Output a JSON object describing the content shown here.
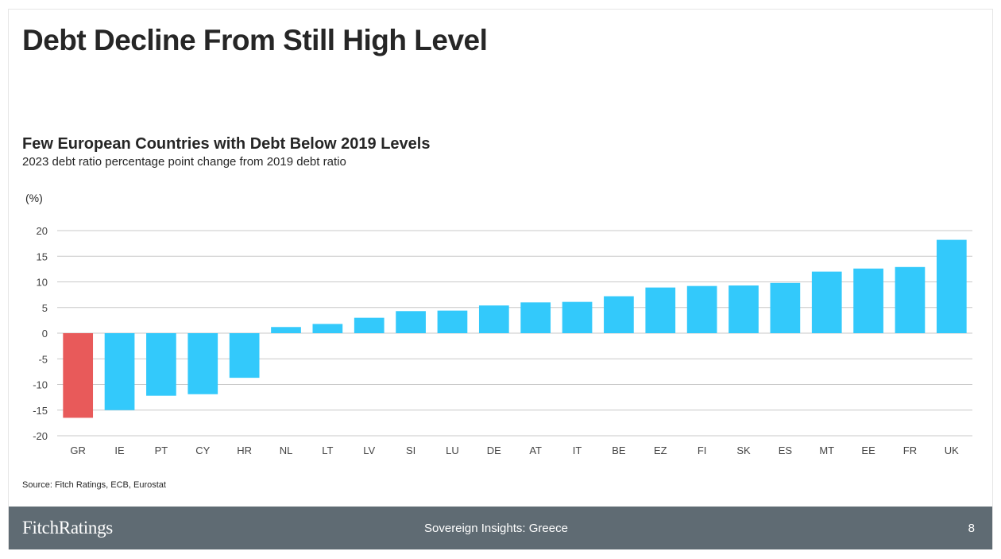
{
  "header": {
    "title": "Debt Decline From Still High Level"
  },
  "chart_data": {
    "type": "bar",
    "title": "Few European Countries with Debt Below 2019 Levels",
    "subtitle": "2023 debt ratio percentage point change from 2019 debt ratio",
    "ylabel": "(%)",
    "xlabel": "",
    "ylim": [
      -20,
      20
    ],
    "yticks": [
      20,
      15,
      10,
      5,
      0,
      -5,
      -10,
      -15,
      -20
    ],
    "grid": true,
    "categories": [
      "GR",
      "IE",
      "PT",
      "CY",
      "HR",
      "NL",
      "LT",
      "LV",
      "SI",
      "LU",
      "DE",
      "AT",
      "IT",
      "BE",
      "EZ",
      "FI",
      "SK",
      "ES",
      "MT",
      "EE",
      "FR",
      "UK"
    ],
    "values": [
      -16.5,
      -15.0,
      -12.2,
      -11.9,
      -8.7,
      1.2,
      1.8,
      3.0,
      4.3,
      4.4,
      5.4,
      6.0,
      6.1,
      7.2,
      8.9,
      9.2,
      9.3,
      9.8,
      12.0,
      12.6,
      12.9,
      18.2
    ],
    "highlight": "GR",
    "colors": {
      "bar": "#33c9fb",
      "highlight": "#e85a5a",
      "grid": "#c8c8c8",
      "axis_text": "#444444"
    }
  },
  "source": "Source: Fitch Ratings, ECB, Eurostat",
  "footer": {
    "logo": "FitchRatings",
    "center": "Sovereign Insights: Greece",
    "page": "8"
  }
}
